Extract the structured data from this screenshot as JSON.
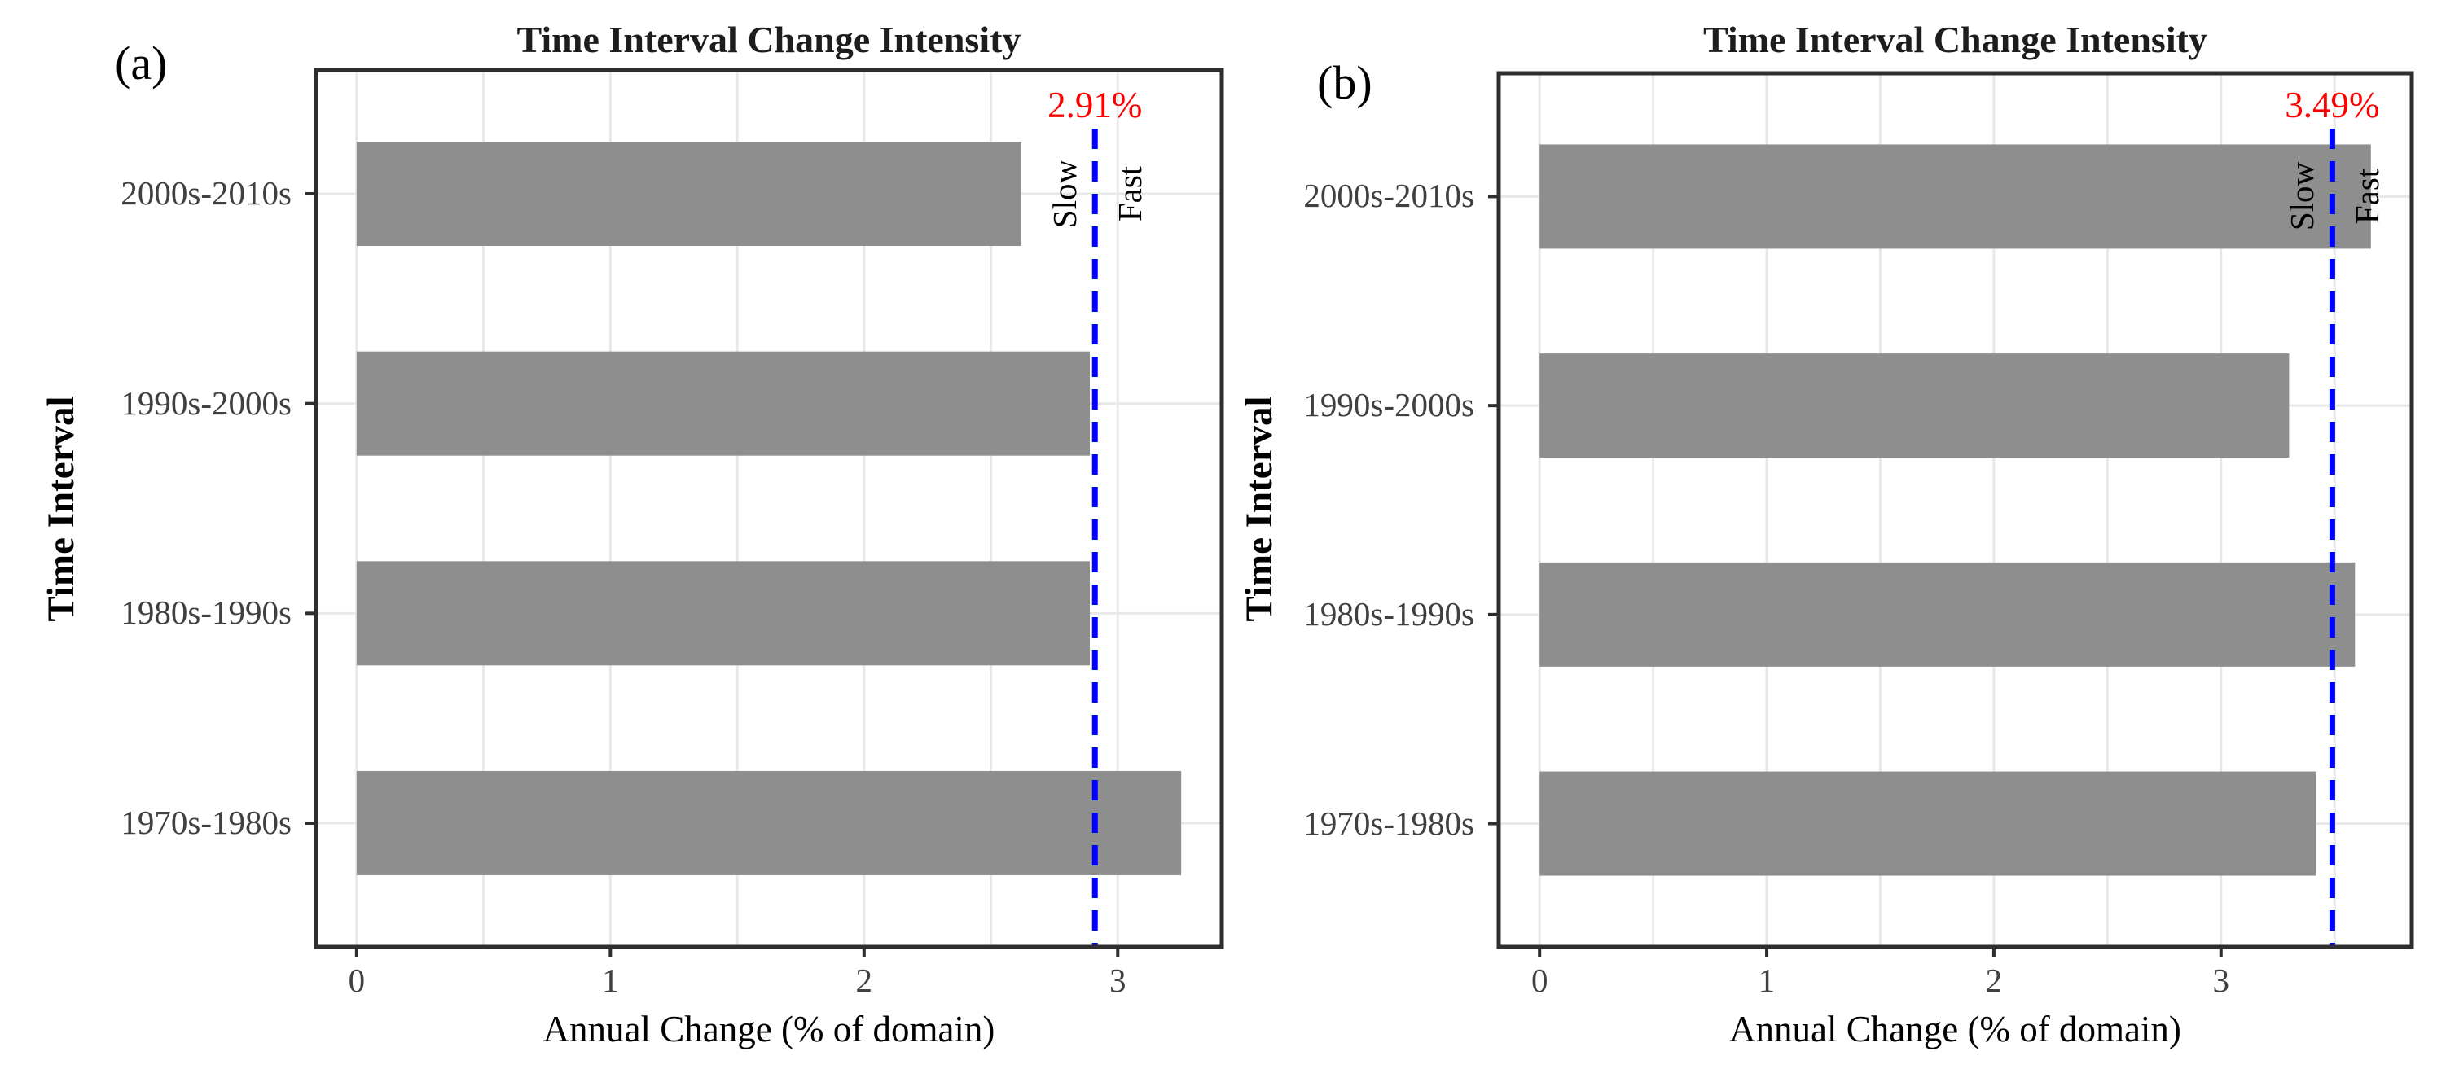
{
  "figure_title": "Time Interval Change Intensity (two-panel comparison)",
  "chart_data": [
    {
      "type": "bar",
      "orientation": "horizontal",
      "panel_label": "(a)",
      "title": "Time Interval Change Intensity",
      "xlabel": "Annual Change (% of domain)",
      "ylabel": "Time Interval",
      "categories": [
        "2000s-2010s",
        "1990s-2000s",
        "1980s-1990s",
        "1970s-1980s"
      ],
      "values": [
        2.62,
        2.89,
        2.89,
        3.25
      ],
      "x_ticks": [
        "0",
        "1",
        "2",
        "3"
      ],
      "x_tick_values": [
        0,
        1,
        2,
        3
      ],
      "xlim": [
        -0.16,
        3.41
      ],
      "grid": "on",
      "grid_step": 0.5,
      "mean_line": {
        "value": 2.91,
        "label": "2.91%",
        "left_label": "Slow",
        "right_label": "Fast"
      },
      "colors": {
        "bar": "#8e8e8e",
        "mean_line": "#0000ff",
        "mean_label": "#ff0000",
        "grid": "#e8e8e8",
        "spine": "#2e2e2e",
        "tick_text": "#404040"
      }
    },
    {
      "type": "bar",
      "orientation": "horizontal",
      "panel_label": "(b)",
      "title": "Time Interval Change Intensity",
      "xlabel": "Annual Change (% of domain)",
      "ylabel": "Time Interval",
      "categories": [
        "2000s-2010s",
        "1990s-2000s",
        "1980s-1990s",
        "1970s-1980s"
      ],
      "values": [
        3.66,
        3.3,
        3.59,
        3.42
      ],
      "x_ticks": [
        "0",
        "1",
        "2",
        "3"
      ],
      "x_tick_values": [
        0,
        1,
        2,
        3
      ],
      "xlim": [
        -0.18,
        3.84
      ],
      "grid": "on",
      "grid_step": 0.5,
      "mean_line": {
        "value": 3.49,
        "label": "3.49%",
        "left_label": "Slow",
        "right_label": "Fast"
      },
      "colors": {
        "bar": "#8e8e8e",
        "mean_line": "#0000ff",
        "mean_label": "#ff0000",
        "grid": "#e8e8e8",
        "spine": "#2e2e2e",
        "tick_text": "#404040"
      }
    }
  ]
}
